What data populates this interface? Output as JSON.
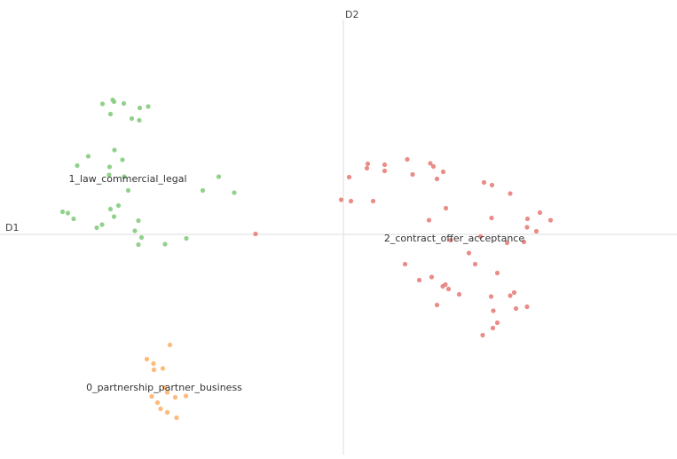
{
  "chart_data": {
    "type": "scatter",
    "xlabel": "D1",
    "ylabel": "D2",
    "xlim": [
      -7.74,
      7.52
    ],
    "ylim": [
      -4.96,
      4.84
    ],
    "grid": false,
    "legend": "none",
    "series": [
      {
        "name": "1_law_commercial_legal",
        "color": "#86cc7f",
        "label_at": [
          -4.86,
          1.26
        ],
        "points": [
          [
            -5.43,
            2.94
          ],
          [
            -5.2,
            3.03
          ],
          [
            -5.17,
            2.99
          ],
          [
            -4.95,
            2.95
          ],
          [
            -4.59,
            2.85
          ],
          [
            -4.4,
            2.88
          ],
          [
            -5.25,
            2.71
          ],
          [
            -4.77,
            2.61
          ],
          [
            -4.6,
            2.57
          ],
          [
            -5.16,
            1.9
          ],
          [
            -5.75,
            1.76
          ],
          [
            -4.98,
            1.68
          ],
          [
            -6.0,
            1.55
          ],
          [
            -5.27,
            1.52
          ],
          [
            -5.28,
            1.34
          ],
          [
            -4.94,
            1.3
          ],
          [
            -2.81,
            1.3
          ],
          [
            -4.85,
            0.99
          ],
          [
            -3.17,
            0.99
          ],
          [
            -2.46,
            0.94
          ],
          [
            -6.33,
            0.51
          ],
          [
            -6.21,
            0.48
          ],
          [
            -5.25,
            0.57
          ],
          [
            -5.07,
            0.65
          ],
          [
            -6.08,
            0.35
          ],
          [
            -5.17,
            0.4
          ],
          [
            -4.62,
            0.31
          ],
          [
            -5.44,
            0.22
          ],
          [
            -5.56,
            0.15
          ],
          [
            -4.7,
            0.08
          ],
          [
            -4.55,
            -0.07
          ],
          [
            -3.54,
            -0.09
          ],
          [
            -4.62,
            -0.23
          ],
          [
            -4.02,
            -0.22
          ]
        ]
      },
      {
        "name": "2_contract_offer_acceptance",
        "color": "#e8807a",
        "label_at": [
          2.5,
          -0.08
        ],
        "points": [
          [
            -1.98,
            0.01
          ],
          [
            1.44,
            1.69
          ],
          [
            0.55,
            1.59
          ],
          [
            0.93,
            1.57
          ],
          [
            1.96,
            1.6
          ],
          [
            2.03,
            1.53
          ],
          [
            0.53,
            1.49
          ],
          [
            0.93,
            1.43
          ],
          [
            2.25,
            1.41
          ],
          [
            1.56,
            1.35
          ],
          [
            0.13,
            1.29
          ],
          [
            2.11,
            1.25
          ],
          [
            3.17,
            1.17
          ],
          [
            3.35,
            1.11
          ],
          [
            3.76,
            0.92
          ],
          [
            -0.05,
            0.78
          ],
          [
            0.17,
            0.75
          ],
          [
            0.67,
            0.75
          ],
          [
            2.31,
            0.59
          ],
          [
            4.43,
            0.49
          ],
          [
            1.93,
            0.32
          ],
          [
            3.34,
            0.37
          ],
          [
            4.15,
            0.35
          ],
          [
            4.67,
            0.32
          ],
          [
            4.14,
            0.16
          ],
          [
            4.35,
            0.07
          ],
          [
            2.42,
            -0.13
          ],
          [
            3.09,
            -0.05
          ],
          [
            3.69,
            -0.19
          ],
          [
            4.07,
            -0.17
          ],
          [
            2.83,
            -0.42
          ],
          [
            1.39,
            -0.67
          ],
          [
            2.97,
            -0.67
          ],
          [
            3.47,
            -0.87
          ],
          [
            1.99,
            -0.96
          ],
          [
            1.71,
            -1.03
          ],
          [
            2.3,
            -1.13
          ],
          [
            2.24,
            -1.17
          ],
          [
            2.37,
            -1.23
          ],
          [
            2.61,
            -1.35
          ],
          [
            3.85,
            -1.31
          ],
          [
            3.76,
            -1.38
          ],
          [
            3.33,
            -1.4
          ],
          [
            4.14,
            -1.63
          ],
          [
            3.89,
            -1.67
          ],
          [
            2.11,
            -1.59
          ],
          [
            3.38,
            -1.72
          ],
          [
            3.47,
            -1.99
          ],
          [
            3.37,
            -2.11
          ],
          [
            3.14,
            -2.27
          ]
        ]
      },
      {
        "name": "0_partnership_partner_business",
        "color": "#fdb36b",
        "label_at": [
          -4.04,
          -3.44
        ],
        "points": [
          [
            -3.91,
            -2.49
          ],
          [
            -4.43,
            -2.81
          ],
          [
            -4.28,
            -2.91
          ],
          [
            -4.27,
            -3.05
          ],
          [
            -4.07,
            -3.02
          ],
          [
            -4.03,
            -3.45
          ],
          [
            -3.97,
            -3.56
          ],
          [
            -4.32,
            -3.65
          ],
          [
            -3.79,
            -3.67
          ],
          [
            -3.55,
            -3.64
          ],
          [
            -4.19,
            -3.79
          ],
          [
            -4.12,
            -3.93
          ],
          [
            -3.97,
            -4.01
          ],
          [
            -3.76,
            -4.13
          ]
        ]
      }
    ]
  }
}
